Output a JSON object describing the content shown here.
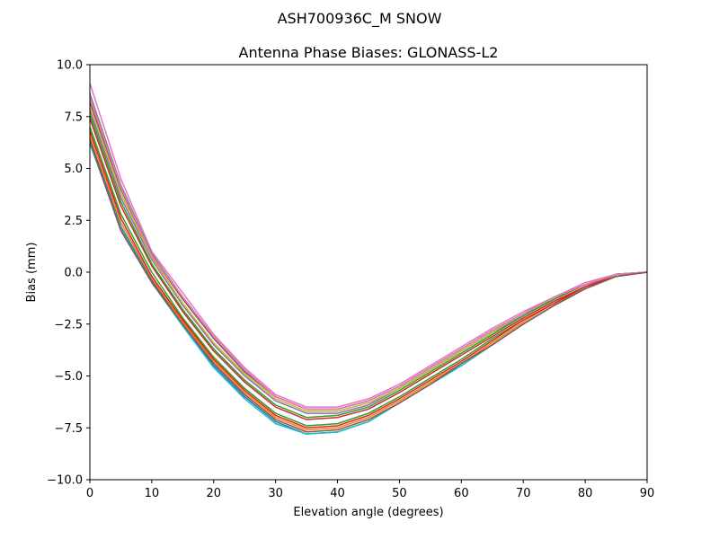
{
  "suptitle": "ASH700936C_M    SNOW",
  "chart_data": {
    "type": "line",
    "title": "Antenna Phase Biases: GLONASS-L2",
    "xlabel": "Elevation angle (degrees)",
    "ylabel": "Bias (mm)",
    "xlim": [
      0,
      90
    ],
    "ylim": [
      -10,
      10
    ],
    "xticks": [
      0,
      10,
      20,
      30,
      40,
      50,
      60,
      70,
      80,
      90
    ],
    "yticks": [
      -10.0,
      -7.5,
      -5.0,
      -2.5,
      0.0,
      2.5,
      5.0,
      7.5,
      10.0
    ],
    "xtick_labels": [
      "0",
      "10",
      "20",
      "30",
      "40",
      "50",
      "60",
      "70",
      "80",
      "90"
    ],
    "ytick_labels": [
      "−10.0",
      "−7.5",
      "−5.0",
      "−2.5",
      "0.0",
      "2.5",
      "5.0",
      "7.5",
      "10.0"
    ],
    "grid": false,
    "x": [
      0,
      5,
      10,
      15,
      20,
      25,
      30,
      35,
      40,
      45,
      50,
      55,
      60,
      65,
      70,
      75,
      80,
      85,
      90
    ],
    "series": [
      {
        "color": "#1f77b4",
        "values": [
          6.4,
          2.2,
          -0.4,
          -2.5,
          -4.5,
          -6.0,
          -7.2,
          -7.8,
          -7.7,
          -7.2,
          -6.3,
          -5.4,
          -4.5,
          -3.5,
          -2.5,
          -1.6,
          -0.8,
          -0.2,
          0.0
        ]
      },
      {
        "color": "#ff7f0e",
        "values": [
          6.6,
          2.4,
          -0.3,
          -2.4,
          -4.3,
          -5.8,
          -7.0,
          -7.6,
          -7.5,
          -7.0,
          -6.2,
          -5.3,
          -4.4,
          -3.4,
          -2.4,
          -1.5,
          -0.8,
          -0.2,
          0.0
        ]
      },
      {
        "color": "#2ca02c",
        "values": [
          7.0,
          2.8,
          0.0,
          -2.2,
          -4.1,
          -5.6,
          -6.8,
          -7.4,
          -7.3,
          -6.8,
          -6.0,
          -5.1,
          -4.2,
          -3.2,
          -2.3,
          -1.5,
          -0.7,
          -0.2,
          0.0
        ]
      },
      {
        "color": "#d62728",
        "values": [
          7.4,
          3.2,
          0.3,
          -1.9,
          -3.8,
          -5.3,
          -6.5,
          -7.1,
          -7.0,
          -6.6,
          -5.8,
          -4.9,
          -4.0,
          -3.1,
          -2.2,
          -1.4,
          -0.7,
          -0.1,
          0.0
        ]
      },
      {
        "color": "#9467bd",
        "values": [
          7.8,
          3.6,
          0.6,
          -1.6,
          -3.5,
          -5.0,
          -6.2,
          -6.8,
          -6.8,
          -6.4,
          -5.6,
          -4.7,
          -3.8,
          -2.9,
          -2.1,
          -1.3,
          -0.6,
          -0.1,
          0.0
        ]
      },
      {
        "color": "#8c564b",
        "values": [
          8.2,
          4.0,
          0.8,
          -1.3,
          -3.2,
          -4.8,
          -6.0,
          -6.6,
          -6.6,
          -6.2,
          -5.5,
          -4.6,
          -3.7,
          -2.8,
          -2.0,
          -1.3,
          -0.6,
          -0.1,
          0.0
        ]
      },
      {
        "color": "#e377c2",
        "values": [
          9.1,
          4.5,
          1.0,
          -1.0,
          -3.0,
          -4.6,
          -5.9,
          -6.5,
          -6.5,
          -6.1,
          -5.4,
          -4.5,
          -3.6,
          -2.7,
          -1.9,
          -1.2,
          -0.5,
          -0.1,
          0.0
        ]
      },
      {
        "color": "#7f7f7f",
        "values": [
          8.6,
          4.2,
          0.9,
          -1.2,
          -3.1,
          -4.7,
          -6.0,
          -6.6,
          -6.6,
          -6.2,
          -5.5,
          -4.6,
          -3.7,
          -2.8,
          -2.0,
          -1.2,
          -0.6,
          -0.1,
          0.0
        ]
      },
      {
        "color": "#bcbd22",
        "values": [
          8.0,
          3.8,
          0.7,
          -1.5,
          -3.4,
          -4.9,
          -6.1,
          -6.7,
          -6.7,
          -6.3,
          -5.6,
          -4.7,
          -3.8,
          -2.9,
          -2.0,
          -1.3,
          -0.6,
          -0.1,
          0.0
        ]
      },
      {
        "color": "#17becf",
        "values": [
          6.2,
          2.1,
          -0.5,
          -2.6,
          -4.6,
          -6.1,
          -7.3,
          -7.8,
          -7.7,
          -7.2,
          -6.3,
          -5.4,
          -4.5,
          -3.5,
          -2.5,
          -1.6,
          -0.8,
          -0.2,
          0.0
        ]
      },
      {
        "color": "#d62728",
        "values": [
          6.8,
          2.6,
          -0.2,
          -2.3,
          -4.2,
          -5.7,
          -6.9,
          -7.5,
          -7.4,
          -6.9,
          -6.1,
          -5.2,
          -4.3,
          -3.3,
          -2.3,
          -1.5,
          -0.7,
          -0.2,
          0.0
        ]
      },
      {
        "color": "#2ca02c",
        "values": [
          7.6,
          3.4,
          0.4,
          -1.8,
          -3.7,
          -5.2,
          -6.4,
          -7.0,
          -6.9,
          -6.5,
          -5.7,
          -4.8,
          -3.9,
          -3.0,
          -2.1,
          -1.3,
          -0.6,
          -0.1,
          0.0
        ]
      },
      {
        "color": "#e377c2",
        "values": [
          8.4,
          4.1,
          0.8,
          -1.2,
          -3.1,
          -4.7,
          -6.0,
          -6.6,
          -6.6,
          -6.2,
          -5.5,
          -4.6,
          -3.7,
          -2.8,
          -2.0,
          -1.2,
          -0.6,
          -0.1,
          0.0
        ]
      },
      {
        "color": "#8c564b",
        "values": [
          6.3,
          2.0,
          -0.5,
          -2.5,
          -4.4,
          -5.9,
          -7.1,
          -7.7,
          -7.6,
          -7.1,
          -6.3,
          -5.4,
          -4.4,
          -3.5,
          -2.5,
          -1.6,
          -0.8,
          -0.2,
          0.0
        ]
      }
    ]
  }
}
